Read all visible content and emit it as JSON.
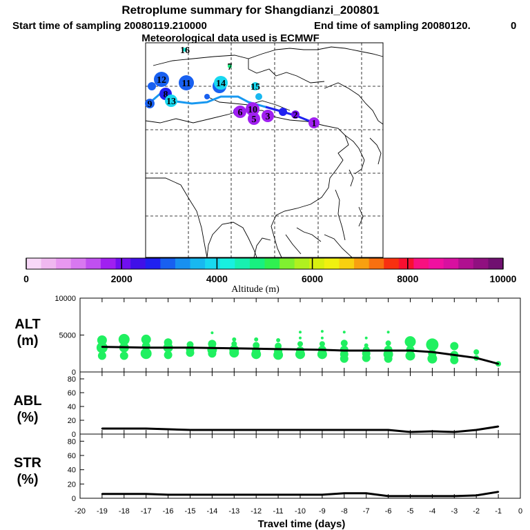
{
  "header": {
    "title": "Retroplume summary for Shangdianzi_200801",
    "start_label": "Start time of sampling 20080119.210000",
    "end_label": "End time of sampling 20080120.",
    "end_tail": "0",
    "met_label": "Meteorological data used is ECMWF"
  },
  "colorbar": {
    "axis_label": "Altitude (m)",
    "range": [
      0,
      10000
    ],
    "ticks": [
      0,
      2000,
      4000,
      6000,
      8000,
      10000
    ],
    "colors": [
      "#f8d8f8",
      "#f0b8f0",
      "#e898f0",
      "#d878f0",
      "#c050f0",
      "#a020f0",
      "#7010f0",
      "#4010e8",
      "#2020f0",
      "#1860f0",
      "#1890f0",
      "#18b8f0",
      "#18d8f0",
      "#18f0e0",
      "#18f0b0",
      "#18f080",
      "#30f050",
      "#80f030",
      "#b0f020",
      "#d8f010",
      "#f0f010",
      "#f8d010",
      "#f8a010",
      "#f87010",
      "#f83010",
      "#f81030",
      "#f81080",
      "#f010a0",
      "#d810a0",
      "#b01090",
      "#901080",
      "#701070"
    ]
  },
  "map_labels": [
    {
      "label": "1",
      "color": "#a020f0"
    },
    {
      "label": "2",
      "color": "#7010f0"
    },
    {
      "label": "3",
      "color": "#a020f0"
    },
    {
      "label": "4",
      "color": "#1860f0"
    },
    {
      "label": "5",
      "color": "#a020f0"
    },
    {
      "label": "6",
      "color": "#a020f0"
    },
    {
      "label": "7",
      "color": "#18f080"
    },
    {
      "label": "8",
      "color": "#2020f0"
    },
    {
      "label": "9",
      "color": "#1860f0"
    },
    {
      "label": "10",
      "color": "#a020f0"
    },
    {
      "label": "11",
      "color": "#1860f0"
    },
    {
      "label": "12",
      "color": "#1860f0"
    },
    {
      "label": "13",
      "color": "#18d8f0"
    },
    {
      "label": "14",
      "color": "#18d8f0"
    },
    {
      "label": "15",
      "color": "#18d8f0"
    },
    {
      "label": "16",
      "color": "#18f0e0"
    }
  ],
  "chart_data": [
    {
      "type": "line",
      "panel": "ALT",
      "ylabel": "ALT",
      "yunit": "(m)",
      "ylim": [
        0,
        10000
      ],
      "yticks": [
        0,
        5000,
        10000
      ],
      "xlim": [
        -20,
        0
      ],
      "x": [
        -19,
        -18,
        -17,
        -16,
        -15,
        -14,
        -13,
        -12,
        -11,
        -10,
        -9,
        -8,
        -7,
        -6,
        -5,
        -4,
        -3,
        -2,
        -1
      ],
      "values": [
        3400,
        3350,
        3300,
        3300,
        3300,
        3250,
        3200,
        3150,
        3100,
        3050,
        3000,
        2900,
        2900,
        2900,
        2900,
        2700,
        2300,
        1900,
        1100
      ],
      "scatter_color": "#20f060",
      "scatter": [
        {
          "x": -19,
          "y": 4300,
          "s": 7
        },
        {
          "x": -19,
          "y": 3300,
          "s": 8
        },
        {
          "x": -19,
          "y": 2200,
          "s": 6
        },
        {
          "x": -18,
          "y": 4400,
          "s": 8
        },
        {
          "x": -18,
          "y": 3300,
          "s": 7
        },
        {
          "x": -18,
          "y": 2200,
          "s": 6
        },
        {
          "x": -17,
          "y": 4400,
          "s": 7
        },
        {
          "x": -17,
          "y": 3500,
          "s": 6
        },
        {
          "x": -17,
          "y": 2500,
          "s": 8
        },
        {
          "x": -16,
          "y": 4000,
          "s": 6
        },
        {
          "x": -16,
          "y": 3300,
          "s": 7
        },
        {
          "x": -16,
          "y": 2300,
          "s": 6
        },
        {
          "x": -15,
          "y": 3700,
          "s": 5
        },
        {
          "x": -15,
          "y": 3100,
          "s": 6
        },
        {
          "x": -15,
          "y": 2600,
          "s": 6
        },
        {
          "x": -14,
          "y": 5300,
          "s": 2
        },
        {
          "x": -14,
          "y": 3800,
          "s": 6
        },
        {
          "x": -14,
          "y": 3000,
          "s": 7
        },
        {
          "x": -14,
          "y": 2500,
          "s": 6
        },
        {
          "x": -13,
          "y": 4400,
          "s": 3
        },
        {
          "x": -13,
          "y": 3800,
          "s": 4
        },
        {
          "x": -13,
          "y": 3000,
          "s": 7
        },
        {
          "x": -13,
          "y": 2600,
          "s": 7
        },
        {
          "x": -12,
          "y": 4400,
          "s": 3
        },
        {
          "x": -12,
          "y": 3600,
          "s": 5
        },
        {
          "x": -12,
          "y": 2900,
          "s": 6
        },
        {
          "x": -12,
          "y": 2400,
          "s": 7
        },
        {
          "x": -11,
          "y": 4300,
          "s": 3
        },
        {
          "x": -11,
          "y": 3500,
          "s": 5
        },
        {
          "x": -11,
          "y": 2800,
          "s": 6
        },
        {
          "x": -11,
          "y": 2300,
          "s": 7
        },
        {
          "x": -10,
          "y": 5400,
          "s": 2
        },
        {
          "x": -10,
          "y": 4600,
          "s": 2
        },
        {
          "x": -10,
          "y": 3800,
          "s": 4
        },
        {
          "x": -10,
          "y": 2900,
          "s": 6
        },
        {
          "x": -10,
          "y": 2400,
          "s": 7
        },
        {
          "x": -9,
          "y": 5500,
          "s": 2
        },
        {
          "x": -9,
          "y": 4600,
          "s": 2
        },
        {
          "x": -9,
          "y": 3800,
          "s": 4
        },
        {
          "x": -9,
          "y": 3000,
          "s": 6
        },
        {
          "x": -9,
          "y": 2400,
          "s": 7
        },
        {
          "x": -8,
          "y": 5400,
          "s": 2
        },
        {
          "x": -8,
          "y": 3900,
          "s": 5
        },
        {
          "x": -8,
          "y": 3000,
          "s": 6
        },
        {
          "x": -8,
          "y": 2400,
          "s": 6
        },
        {
          "x": -8,
          "y": 1800,
          "s": 6
        },
        {
          "x": -7,
          "y": 4600,
          "s": 2
        },
        {
          "x": -7,
          "y": 3600,
          "s": 3
        },
        {
          "x": -7,
          "y": 3000,
          "s": 5
        },
        {
          "x": -7,
          "y": 2500,
          "s": 6
        },
        {
          "x": -7,
          "y": 1900,
          "s": 6
        },
        {
          "x": -6,
          "y": 5400,
          "s": 2
        },
        {
          "x": -6,
          "y": 3900,
          "s": 4
        },
        {
          "x": -6,
          "y": 3000,
          "s": 6
        },
        {
          "x": -6,
          "y": 2400,
          "s": 7
        },
        {
          "x": -6,
          "y": 1800,
          "s": 6
        },
        {
          "x": -5,
          "y": 4100,
          "s": 8
        },
        {
          "x": -5,
          "y": 3000,
          "s": 6
        },
        {
          "x": -5,
          "y": 2200,
          "s": 7
        },
        {
          "x": -4,
          "y": 3700,
          "s": 9
        },
        {
          "x": -4,
          "y": 2500,
          "s": 6
        },
        {
          "x": -4,
          "y": 1800,
          "s": 7
        },
        {
          "x": -3,
          "y": 3500,
          "s": 6
        },
        {
          "x": -3,
          "y": 2300,
          "s": 6
        },
        {
          "x": -3,
          "y": 1600,
          "s": 6
        },
        {
          "x": -2,
          "y": 2700,
          "s": 4
        },
        {
          "x": -2,
          "y": 1900,
          "s": 4
        },
        {
          "x": -1,
          "y": 1100,
          "s": 4
        }
      ]
    },
    {
      "type": "line",
      "panel": "ABL",
      "ylabel": "ABL",
      "yunit": "(%)",
      "ylim": [
        0,
        90
      ],
      "yticks": [
        0,
        20,
        40,
        60,
        80
      ],
      "xlim": [
        -20,
        0
      ],
      "x": [
        -19,
        -18,
        -17,
        -16,
        -15,
        -14,
        -13,
        -12,
        -11,
        -10,
        -9,
        -8,
        -7,
        -6,
        -5,
        -4,
        -3,
        -2,
        -1
      ],
      "values": [
        8,
        8,
        8,
        7,
        6,
        6,
        6,
        6,
        6,
        6,
        6,
        6,
        6,
        6,
        3,
        4,
        3,
        6,
        11
      ]
    },
    {
      "type": "line",
      "panel": "STR",
      "ylabel": "STR",
      "yunit": "(%)",
      "ylim": [
        0,
        90
      ],
      "yticks": [
        0,
        20,
        40,
        60,
        80
      ],
      "xlim": [
        -20,
        0
      ],
      "xlabel": "Travel time (days)",
      "xticks": [
        -20,
        -19,
        -18,
        -17,
        -16,
        -15,
        -14,
        -13,
        -12,
        -11,
        -10,
        -9,
        -8,
        -7,
        -6,
        -5,
        -4,
        -3,
        -2,
        -1,
        0
      ],
      "x": [
        -19,
        -18,
        -17,
        -16,
        -15,
        -14,
        -13,
        -12,
        -11,
        -10,
        -9,
        -8,
        -7,
        -6,
        -5,
        -4,
        -3,
        -2,
        -1
      ],
      "values": [
        6,
        6,
        6,
        5,
        5,
        5,
        5,
        5,
        5,
        5,
        5,
        7,
        7,
        3,
        3,
        3,
        3,
        4,
        9
      ]
    }
  ]
}
